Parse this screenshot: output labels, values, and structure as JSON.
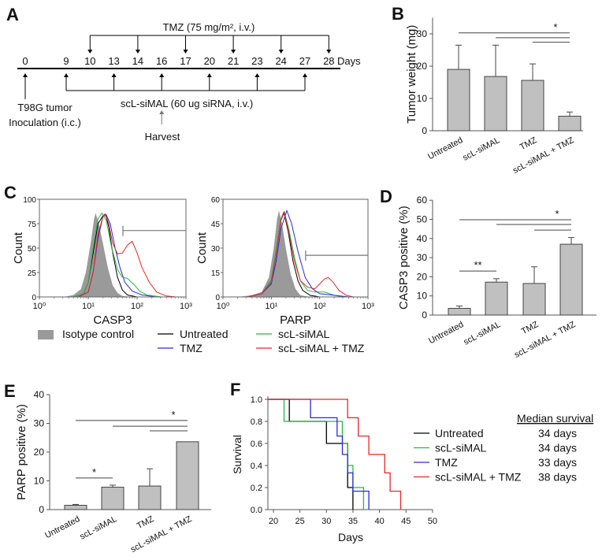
{
  "panel_labels": [
    "A",
    "B",
    "C",
    "D",
    "E",
    "F"
  ],
  "timeline": {
    "tmz_label": "TMZ (75 mg/m², i.v.)",
    "days": [
      0,
      9,
      10,
      13,
      14,
      16,
      17,
      20,
      21,
      23,
      24,
      27,
      28
    ],
    "days_unit": "Days",
    "tmz_days": [
      10,
      14,
      17,
      21,
      24,
      28
    ],
    "siMAL_days": [
      9,
      13,
      16,
      20,
      23,
      27
    ],
    "siMAL_label": "scL-siMAL (60 ug siRNA, i.v.)",
    "inoculation_day": 0,
    "inoculation_label": [
      "T98G tumor",
      "Inoculation (i.c.)"
    ],
    "harvest_day": 16,
    "harvest_label": "Harvest"
  },
  "colors": {
    "untreated": "#000000",
    "siMAL": "#22bb44",
    "tmz": "#2a2ad8",
    "combo": "#e82626",
    "isotype": "#9a9a9a",
    "bar": "#c0c0c0"
  },
  "chart_data": [
    {
      "panel": "B",
      "type": "bar",
      "categories": [
        "Untreated",
        "scL-siMAL",
        "TMZ",
        "scL-siMAL + TMZ"
      ],
      "values": [
        19.0,
        16.8,
        15.6,
        4.5
      ],
      "error_upper": [
        26.5,
        26.5,
        20.7,
        5.8
      ],
      "ylabel": "Tumor weight (mg)",
      "ylim": [
        0,
        35
      ],
      "yticks": [
        0,
        10,
        20,
        30
      ],
      "significance": [
        {
          "from": 0,
          "to": 3,
          "y": 30.3,
          "label": "*"
        },
        {
          "from": 1,
          "to": 3,
          "y": 28.8,
          "label": ""
        },
        {
          "from": 2,
          "to": 3,
          "y": 27.4,
          "label": ""
        }
      ]
    },
    {
      "panel": "C",
      "type": "line",
      "subtype": "histogram",
      "xlabel": "CASP3",
      "ylabel": "Count",
      "xscale": "log",
      "xticks": [
        "10⁰",
        "10¹",
        "10²",
        "10³"
      ],
      "ylim": [
        0,
        100
      ],
      "yticks": [
        0,
        25,
        50,
        75,
        100
      ],
      "gate": {
        "from_log10": 1.71,
        "to_log10": 3,
        "count": 68
      },
      "series": [
        {
          "name": "Isotype control",
          "key": "isotype",
          "filled": true,
          "points": [
            [
              0.5,
              0
            ],
            [
              0.7,
              2
            ],
            [
              0.85,
              8
            ],
            [
              0.95,
              25
            ],
            [
              1.05,
              55
            ],
            [
              1.12,
              80
            ],
            [
              1.15,
              86
            ],
            [
              1.2,
              78
            ],
            [
              1.3,
              55
            ],
            [
              1.4,
              30
            ],
            [
              1.5,
              12
            ],
            [
              1.6,
              4
            ],
            [
              1.7,
              1
            ],
            [
              1.9,
              0
            ]
          ]
        },
        {
          "name": "Untreated",
          "key": "untreated",
          "points": [
            [
              0.7,
              0
            ],
            [
              0.9,
              3
            ],
            [
              1.0,
              15
            ],
            [
              1.1,
              45
            ],
            [
              1.2,
              75
            ],
            [
              1.3,
              83
            ],
            [
              1.35,
              85
            ],
            [
              1.42,
              72
            ],
            [
              1.5,
              45
            ],
            [
              1.6,
              20
            ],
            [
              1.7,
              7
            ],
            [
              1.8,
              2
            ],
            [
              2.0,
              0
            ]
          ]
        },
        {
          "name": "TMZ",
          "key": "tmz",
          "points": [
            [
              0.8,
              0
            ],
            [
              1.0,
              5
            ],
            [
              1.1,
              25
            ],
            [
              1.2,
              60
            ],
            [
              1.3,
              82
            ],
            [
              1.37,
              84
            ],
            [
              1.45,
              75
            ],
            [
              1.55,
              50
            ],
            [
              1.65,
              30
            ],
            [
              1.75,
              15
            ],
            [
              1.9,
              6
            ],
            [
              2.1,
              2
            ],
            [
              2.4,
              0
            ]
          ]
        },
        {
          "name": "scL-siMAL",
          "key": "siMAL",
          "points": [
            [
              0.7,
              0
            ],
            [
              0.9,
              3
            ],
            [
              1.0,
              15
            ],
            [
              1.1,
              50
            ],
            [
              1.2,
              80
            ],
            [
              1.28,
              86
            ],
            [
              1.37,
              78
            ],
            [
              1.48,
              50
            ],
            [
              1.6,
              28
            ],
            [
              1.7,
              20
            ],
            [
              1.8,
              19
            ],
            [
              1.95,
              12
            ],
            [
              2.05,
              6
            ],
            [
              2.2,
              2
            ],
            [
              2.5,
              0
            ]
          ]
        },
        {
          "name": "scL-siMAL + TMZ",
          "key": "combo",
          "points": [
            [
              0.8,
              0
            ],
            [
              1.0,
              5
            ],
            [
              1.1,
              25
            ],
            [
              1.2,
              65
            ],
            [
              1.3,
              82
            ],
            [
              1.35,
              85
            ],
            [
              1.42,
              75
            ],
            [
              1.5,
              55
            ],
            [
              1.6,
              44
            ],
            [
              1.7,
              45
            ],
            [
              1.8,
              53
            ],
            [
              1.9,
              57
            ],
            [
              2.0,
              45
            ],
            [
              2.1,
              30
            ],
            [
              2.25,
              15
            ],
            [
              2.4,
              5
            ],
            [
              2.6,
              1
            ],
            [
              2.8,
              0
            ]
          ]
        }
      ]
    },
    {
      "panel": "C",
      "type": "line",
      "subtype": "histogram",
      "xlabel": "PARP",
      "ylabel": "Count",
      "xscale": "log",
      "xticks": [
        "10⁰",
        "10¹",
        "10²",
        "10³"
      ],
      "ylim": [
        0,
        60
      ],
      "yticks": [
        0,
        15,
        30,
        45,
        60
      ],
      "gate": {
        "from_log10": 1.71,
        "to_log10": 3,
        "count": 25.6
      },
      "series": [
        {
          "name": "Isotype control",
          "key": "isotype",
          "filled": true,
          "points": [
            [
              0.3,
              0
            ],
            [
              0.6,
              1
            ],
            [
              0.8,
              3
            ],
            [
              0.95,
              12
            ],
            [
              1.05,
              30
            ],
            [
              1.12,
              48
            ],
            [
              1.16,
              53
            ],
            [
              1.22,
              45
            ],
            [
              1.3,
              30
            ],
            [
              1.4,
              14
            ],
            [
              1.5,
              5
            ],
            [
              1.6,
              1
            ],
            [
              1.8,
              0
            ]
          ]
        },
        {
          "name": "Untreated",
          "key": "untreated",
          "points": [
            [
              0.5,
              0
            ],
            [
              0.8,
              2
            ],
            [
              1.0,
              10
            ],
            [
              1.1,
              28
            ],
            [
              1.2,
              48
            ],
            [
              1.26,
              52
            ],
            [
              1.35,
              40
            ],
            [
              1.45,
              22
            ],
            [
              1.55,
              10
            ],
            [
              1.65,
              4
            ],
            [
              1.8,
              1
            ],
            [
              2.0,
              0
            ]
          ]
        },
        {
          "name": "scL-siMAL",
          "key": "siMAL",
          "points": [
            [
              0.5,
              0
            ],
            [
              0.8,
              2
            ],
            [
              1.0,
              10
            ],
            [
              1.1,
              28
            ],
            [
              1.2,
              48
            ],
            [
              1.27,
              52
            ],
            [
              1.36,
              42
            ],
            [
              1.48,
              24
            ],
            [
              1.6,
              10
            ],
            [
              1.75,
              4
            ],
            [
              1.9,
              3
            ],
            [
              2.1,
              3
            ],
            [
              2.3,
              1
            ],
            [
              2.5,
              0
            ]
          ]
        },
        {
          "name": "TMZ",
          "key": "tmz",
          "points": [
            [
              0.5,
              0
            ],
            [
              0.8,
              2
            ],
            [
              1.0,
              8
            ],
            [
              1.1,
              22
            ],
            [
              1.2,
              42
            ],
            [
              1.32,
              53
            ],
            [
              1.42,
              45
            ],
            [
              1.55,
              28
            ],
            [
              1.7,
              12
            ],
            [
              1.85,
              5
            ],
            [
              2.0,
              2
            ],
            [
              2.3,
              1
            ],
            [
              2.6,
              0
            ]
          ]
        },
        {
          "name": "scL-siMAL + TMZ",
          "key": "combo",
          "points": [
            [
              0.5,
              0
            ],
            [
              0.8,
              2
            ],
            [
              1.0,
              9
            ],
            [
              1.1,
              26
            ],
            [
              1.2,
              47
            ],
            [
              1.27,
              52
            ],
            [
              1.36,
              40
            ],
            [
              1.48,
              22
            ],
            [
              1.6,
              10
            ],
            [
              1.75,
              6
            ],
            [
              1.9,
              5
            ],
            [
              2.0,
              8
            ],
            [
              2.1,
              11
            ],
            [
              2.18,
              12
            ],
            [
              2.28,
              9
            ],
            [
              2.4,
              4
            ],
            [
              2.55,
              1
            ],
            [
              2.7,
              0
            ]
          ]
        }
      ]
    },
    {
      "panel": "D",
      "type": "bar",
      "categories": [
        "Untreated",
        "scL-siMAL",
        "TMZ",
        "scL-siMAL + TMZ"
      ],
      "values": [
        3.5,
        17.2,
        16.5,
        37.0
      ],
      "error_upper": [
        4.7,
        19.0,
        25.2,
        40.5
      ],
      "ylabel": "CASP3 positive (%)",
      "ylim": [
        0,
        60
      ],
      "yticks": [
        0,
        10,
        20,
        30,
        40,
        50,
        60
      ],
      "significance": [
        {
          "from": 0,
          "to": 1,
          "y": 23,
          "label": "**"
        },
        {
          "from": 0,
          "to": 3,
          "y": 49.8,
          "label": "*"
        },
        {
          "from": 1,
          "to": 3,
          "y": 47.3,
          "label": ""
        },
        {
          "from": 2,
          "to": 3,
          "y": 44.4,
          "label": ""
        }
      ]
    },
    {
      "panel": "E",
      "type": "bar",
      "categories": [
        "Untreated",
        "scL-siMAL",
        "TMZ",
        "scL-siMAL + TMZ"
      ],
      "values": [
        1.5,
        7.8,
        8.2,
        23.6
      ],
      "error_upper": [
        1.8,
        8.5,
        14.2,
        23.6
      ],
      "ylabel": "PARP positive (%)",
      "ylim": [
        0,
        40
      ],
      "yticks": [
        0,
        10,
        20,
        30,
        40
      ],
      "significance": [
        {
          "from": 0,
          "to": 1,
          "y": 11,
          "label": "*"
        },
        {
          "from": 0,
          "to": 3,
          "y": 31,
          "label": "*"
        },
        {
          "from": 1,
          "to": 3,
          "y": 29,
          "label": ""
        },
        {
          "from": 2,
          "to": 3,
          "y": 27.4,
          "label": ""
        }
      ]
    },
    {
      "panel": "F",
      "type": "line",
      "subtype": "kaplan-meier",
      "xlabel": "Days",
      "ylabel": "Survival",
      "xlim": [
        19,
        50
      ],
      "xticks": [
        20,
        25,
        30,
        35,
        40,
        45,
        50
      ],
      "ylim": [
        0,
        1
      ],
      "yticks": [
        "0.0",
        "0.2",
        "0.4",
        "0.6",
        "0.8",
        "1.0"
      ],
      "legend_header": "Median survival",
      "series": [
        {
          "name": "Untreated",
          "key": "untreated",
          "median": "34 days",
          "steps": [
            [
              20,
              1
            ],
            [
              23,
              0.8
            ],
            [
              30,
              0.6
            ],
            [
              34,
              0.2
            ],
            [
              35,
              0
            ]
          ]
        },
        {
          "name": "scL-siMAL",
          "key": "siMAL",
          "median": "34 days",
          "steps": [
            [
              20,
              1
            ],
            [
              22,
              0.8
            ],
            [
              33,
              0.6
            ],
            [
              34,
              0.4
            ],
            [
              35,
              0.2
            ],
            [
              37,
              0
            ]
          ]
        },
        {
          "name": "TMZ",
          "key": "tmz",
          "median": "33 days",
          "steps": [
            [
              20,
              1
            ],
            [
              27,
              0.833
            ],
            [
              32,
              0.667
            ],
            [
              33,
              0.5
            ],
            [
              34,
              0.333
            ],
            [
              35,
              0.167
            ],
            [
              38,
              0
            ]
          ]
        },
        {
          "name": "scL-siMAL + TMZ",
          "key": "combo",
          "median": "38 days",
          "steps": [
            [
              20,
              1
            ],
            [
              34,
              0.833
            ],
            [
              36,
              0.667
            ],
            [
              38,
              0.5
            ],
            [
              41,
              0.333
            ],
            [
              42,
              0.167
            ],
            [
              44,
              0
            ]
          ]
        }
      ]
    }
  ],
  "legend_c": [
    {
      "name": "Isotype control",
      "key": "isotype"
    },
    {
      "name": "Untreated",
      "key": "untreated"
    },
    {
      "name": "scL-siMAL",
      "key": "siMAL"
    },
    {
      "name": "TMZ",
      "key": "tmz"
    },
    {
      "name": "scL-siMAL + TMZ",
      "key": "combo"
    }
  ]
}
